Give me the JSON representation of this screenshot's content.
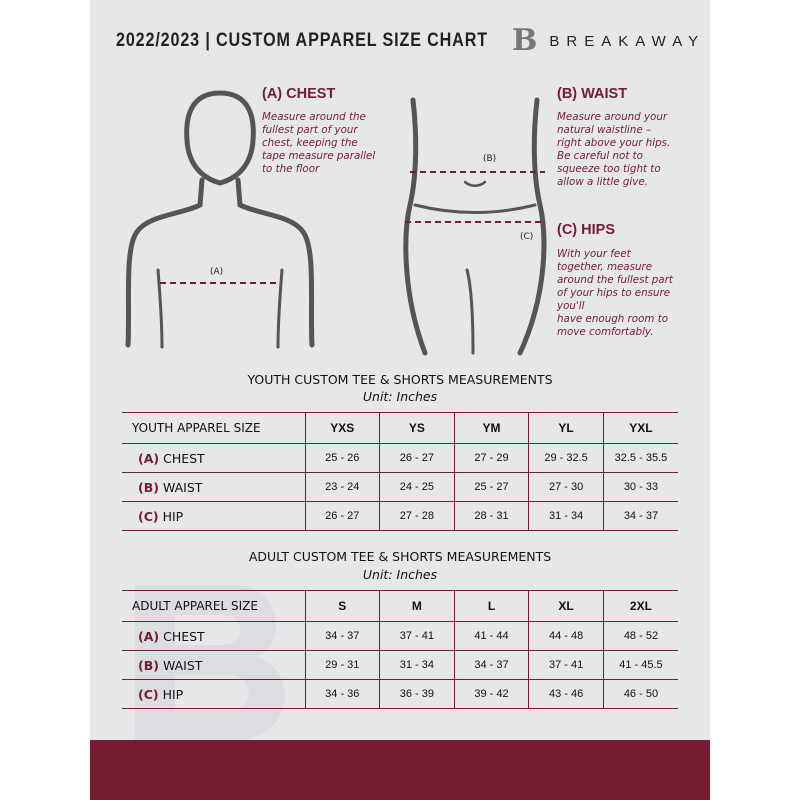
{
  "header": {
    "title": "2022/2023  |  CUSTOM APPAREL SIZE CHART",
    "brand": "BREAKAWAY",
    "logo_letter": "B"
  },
  "colors": {
    "accent": "#751c32",
    "background": "#e6e7e9"
  },
  "guide": {
    "chest": {
      "heading": "(A) CHEST",
      "marker": "(A)",
      "text": "Measure around the\nfullest part of your\nchest, keeping the\ntape measure parallel\nto the floor"
    },
    "waist": {
      "heading": "(B) WAIST",
      "marker": "(B)",
      "text": "Measure around your\nnatural waistline –\nright above your hips.\nBe careful not to\nsqueeze too tight to\nallow a little give."
    },
    "hips": {
      "heading": "(C) HIPS",
      "marker": "(C)",
      "text": "With your feet\ntogether, measure\naround the fullest part\nof your hips to ensure\nyou'll\nhave enough room to\nmove comfortably."
    }
  },
  "youth": {
    "title": "YOUTH CUSTOM TEE & SHORTS MEASUREMENTS",
    "unit": "Unit: Inches",
    "size_label": "YOUTH APPAREL SIZE",
    "sizes": [
      "YXS",
      "YS",
      "YM",
      "YL",
      "YXL"
    ],
    "rows": [
      {
        "letter": "(A)",
        "name": "CHEST",
        "values": [
          "25 - 26",
          "26 - 27",
          "27 - 29",
          "29 - 32.5",
          "32.5 - 35.5"
        ]
      },
      {
        "letter": "(B)",
        "name": "WAIST",
        "values": [
          "23 - 24",
          "24 - 25",
          "25 - 27",
          "27 - 30",
          "30 - 33"
        ]
      },
      {
        "letter": "(C)",
        "name": "HIP",
        "values": [
          "26 - 27",
          "27 - 28",
          "28 - 31",
          "31 - 34",
          "34 - 37"
        ]
      }
    ]
  },
  "adult": {
    "title": "ADULT CUSTOM TEE & SHORTS MEASUREMENTS",
    "unit": "Unit: Inches",
    "size_label": "ADULT APPAREL SIZE",
    "sizes": [
      "S",
      "M",
      "L",
      "XL",
      "2XL"
    ],
    "rows": [
      {
        "letter": "(A)",
        "name": "CHEST",
        "values": [
          "34 - 37",
          "37 - 41",
          "41 - 44",
          "44 - 48",
          "48 - 52"
        ]
      },
      {
        "letter": "(B)",
        "name": "WAIST",
        "values": [
          "29 - 31",
          "31 - 34",
          "34 - 37",
          "37 - 41",
          "41 - 45.5"
        ]
      },
      {
        "letter": "(C)",
        "name": "HIP",
        "values": [
          "34 - 36",
          "36 - 39",
          "39 - 42",
          "43 - 46",
          "46 - 50"
        ]
      }
    ]
  }
}
